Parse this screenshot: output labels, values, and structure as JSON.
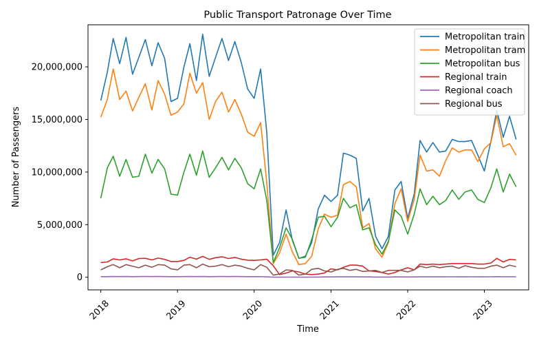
{
  "chart_data": {
    "type": "line",
    "title": "Public Transport Patronage Over Time",
    "xlabel": "Time",
    "ylabel": "Number of Passengers",
    "xlim": [
      "2017-11-01",
      "2023-07-31"
    ],
    "ylim": [
      -1200000,
      24000000
    ],
    "x_ticks": [
      "2018",
      "2019",
      "2020",
      "2021",
      "2022",
      "2023"
    ],
    "y_ticks": [
      "0",
      "5,000,000",
      "10,000,000",
      "15,000,000",
      "20,000,000"
    ],
    "y_tick_values": [
      0,
      5000000,
      10000000,
      15000000,
      20000000
    ],
    "grid": false,
    "legend_position": "top-right",
    "x": [
      "2018-01",
      "2018-02",
      "2018-03",
      "2018-04",
      "2018-05",
      "2018-06",
      "2018-07",
      "2018-08",
      "2018-09",
      "2018-10",
      "2018-11",
      "2018-12",
      "2019-01",
      "2019-02",
      "2019-03",
      "2019-04",
      "2019-05",
      "2019-06",
      "2019-07",
      "2019-08",
      "2019-09",
      "2019-10",
      "2019-11",
      "2019-12",
      "2020-01",
      "2020-02",
      "2020-03",
      "2020-04",
      "2020-05",
      "2020-06",
      "2020-07",
      "2020-08",
      "2020-09",
      "2020-10",
      "2020-11",
      "2020-12",
      "2021-01",
      "2021-02",
      "2021-03",
      "2021-04",
      "2021-05",
      "2021-06",
      "2021-07",
      "2021-08",
      "2021-09",
      "2021-10",
      "2021-11",
      "2021-12",
      "2022-01",
      "2022-02",
      "2022-03",
      "2022-04",
      "2022-05",
      "2022-06",
      "2022-07",
      "2022-08",
      "2022-09",
      "2022-10",
      "2022-11",
      "2022-12",
      "2023-01",
      "2023-02",
      "2023-03",
      "2023-04",
      "2023-05",
      "2023-06"
    ],
    "series": [
      {
        "name": "Metropolitan train",
        "color": "#1f77b4",
        "values": [
          16800000,
          19500000,
          22700000,
          20300000,
          22800000,
          19300000,
          20900000,
          22600000,
          20100000,
          22300000,
          20800000,
          16700000,
          17000000,
          20000000,
          22200000,
          18700000,
          23100000,
          19100000,
          20900000,
          22700000,
          20600000,
          22400000,
          20400000,
          17900000,
          17000000,
          19800000,
          13800000,
          2100000,
          3300000,
          6400000,
          3500000,
          1800000,
          2000000,
          3300000,
          6500000,
          7800000,
          7200000,
          7800000,
          11800000,
          11600000,
          11300000,
          6300000,
          7500000,
          3900000,
          2700000,
          3900000,
          8300000,
          9100000,
          5600000,
          7900000,
          13000000,
          11900000,
          12800000,
          11900000,
          12000000,
          13100000,
          12900000,
          12900000,
          13000000,
          11600000,
          10100000,
          12900000,
          15900000,
          13300000,
          15300000,
          13100000
        ]
      },
      {
        "name": "Metropolitan tram",
        "color": "#ff7f0e",
        "values": [
          15200000,
          16900000,
          19800000,
          16900000,
          17700000,
          15800000,
          17100000,
          18400000,
          15900000,
          18700000,
          17400000,
          15400000,
          15700000,
          16500000,
          19400000,
          17500000,
          18500000,
          15000000,
          16700000,
          17600000,
          15700000,
          16900000,
          15500000,
          13800000,
          13400000,
          14700000,
          9000000,
          1300000,
          2300000,
          4100000,
          2400000,
          1200000,
          1300000,
          2000000,
          4600000,
          6000000,
          5700000,
          5900000,
          8800000,
          9100000,
          8600000,
          4700000,
          5100000,
          2700000,
          1900000,
          3300000,
          7000000,
          8400000,
          5300000,
          7400000,
          11600000,
          10100000,
          10200000,
          9600000,
          11100000,
          12300000,
          11900000,
          12100000,
          12100000,
          11000000,
          12200000,
          12800000,
          15400000,
          12400000,
          12700000,
          11600000
        ]
      },
      {
        "name": "Metropolitan bus",
        "color": "#2ca02c",
        "values": [
          7500000,
          10400000,
          11500000,
          9600000,
          11200000,
          9500000,
          9600000,
          11700000,
          9900000,
          11200000,
          10300000,
          7900000,
          7800000,
          10000000,
          11700000,
          9700000,
          12000000,
          9500000,
          10400000,
          11400000,
          10200000,
          11300000,
          10400000,
          8900000,
          8400000,
          10300000,
          7300000,
          1400000,
          2800000,
          4700000,
          3600000,
          1800000,
          1900000,
          3600000,
          5700000,
          5800000,
          4800000,
          5700000,
          7500000,
          6600000,
          6900000,
          4500000,
          4700000,
          3100000,
          2200000,
          3400000,
          6400000,
          5800000,
          4100000,
          6000000,
          8400000,
          6900000,
          7700000,
          6900000,
          7300000,
          8300000,
          7400000,
          8100000,
          8300000,
          7400000,
          7100000,
          8500000,
          10300000,
          8100000,
          9800000,
          8600000
        ]
      },
      {
        "name": "Regional train",
        "color": "#d62728",
        "values": [
          1400000,
          1450000,
          1750000,
          1650000,
          1750000,
          1550000,
          1780000,
          1800000,
          1650000,
          1820000,
          1700000,
          1500000,
          1500000,
          1600000,
          1900000,
          1720000,
          1980000,
          1700000,
          1860000,
          1950000,
          1780000,
          1880000,
          1720000,
          1620000,
          1600000,
          1650000,
          1720000,
          1100000,
          250000,
          400000,
          600000,
          500000,
          300000,
          250000,
          300000,
          400000,
          800000,
          700000,
          950000,
          1150000,
          1150000,
          1050000,
          600000,
          550000,
          450000,
          300000,
          450000,
          700000,
          900000,
          700000,
          1250000,
          1200000,
          1250000,
          1200000,
          1250000,
          1300000,
          1300000,
          1300000,
          1300000,
          1250000,
          1250000,
          1350000,
          1800000,
          1450000,
          1700000,
          1650000
        ]
      },
      {
        "name": "Regional coach",
        "color": "#9467bd",
        "values": [
          60000,
          60000,
          70000,
          65000,
          70000,
          60000,
          65000,
          70000,
          65000,
          70000,
          65000,
          60000,
          60000,
          65000,
          70000,
          65000,
          70000,
          60000,
          65000,
          70000,
          65000,
          70000,
          65000,
          60000,
          55000,
          60000,
          40000,
          5000,
          5000,
          10000,
          8000,
          5000,
          5000,
          10000,
          20000,
          30000,
          30000,
          35000,
          45000,
          40000,
          40000,
          30000,
          30000,
          20000,
          15000,
          20000,
          30000,
          30000,
          25000,
          30000,
          40000,
          35000,
          40000,
          35000,
          40000,
          45000,
          40000,
          40000,
          45000,
          40000,
          40000,
          45000,
          55000,
          45000,
          50000,
          45000
        ]
      },
      {
        "name": "Regional bus",
        "color": "#8c564b",
        "values": [
          700000,
          1000000,
          1200000,
          900000,
          1200000,
          1050000,
          900000,
          1150000,
          950000,
          1200000,
          1150000,
          800000,
          700000,
          1150000,
          1200000,
          900000,
          1250000,
          1000000,
          1050000,
          1200000,
          1000000,
          1150000,
          1050000,
          850000,
          700000,
          1200000,
          950000,
          200000,
          300000,
          700000,
          650000,
          200000,
          300000,
          750000,
          850000,
          600000,
          500000,
          750000,
          850000,
          650000,
          750000,
          550000,
          600000,
          650000,
          450000,
          650000,
          650000,
          650000,
          500000,
          700000,
          1050000,
          900000,
          1050000,
          900000,
          1000000,
          1050000,
          850000,
          1100000,
          950000,
          850000,
          850000,
          1050000,
          1150000,
          900000,
          1150000,
          1000000
        ]
      }
    ]
  }
}
